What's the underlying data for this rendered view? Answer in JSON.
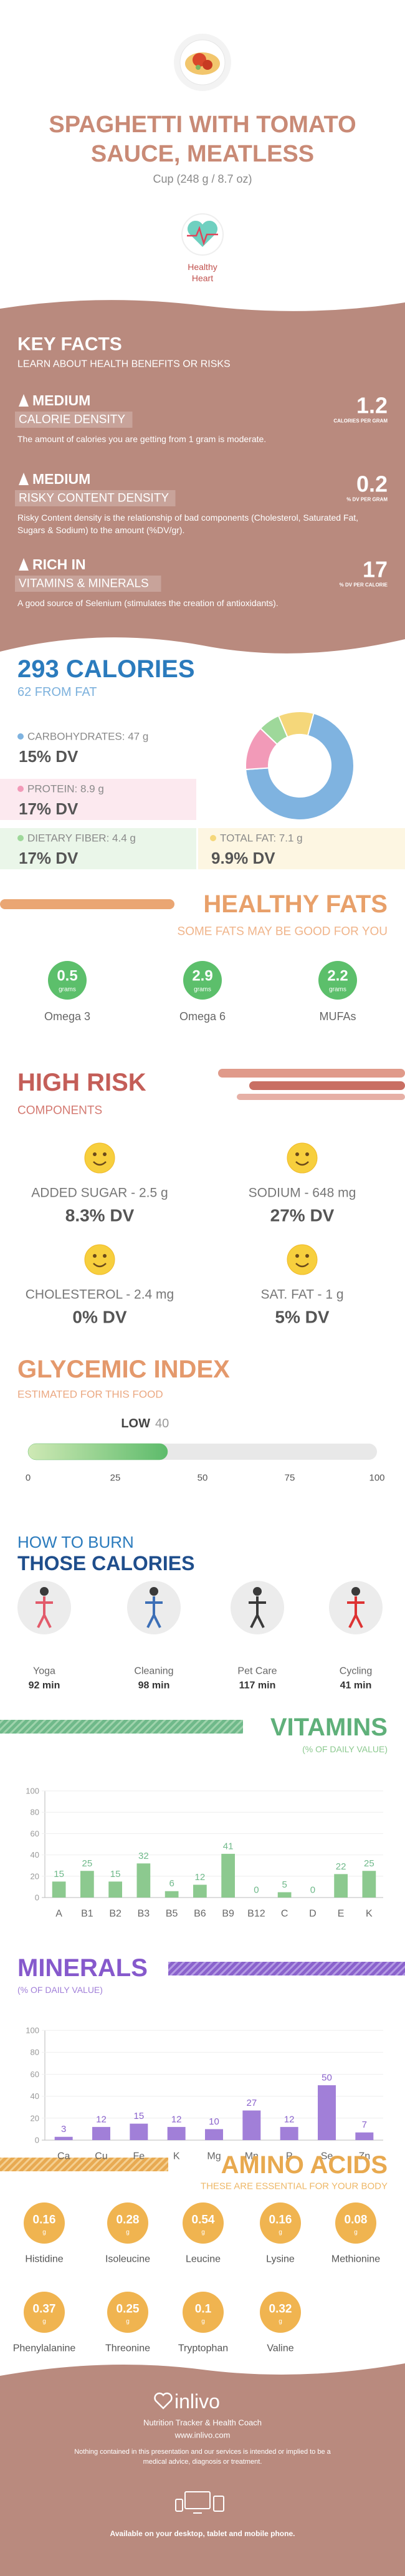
{
  "header": {
    "title_lines": [
      "SPAGHETTI WITH TOMATO",
      "SAUCE, MEATLESS"
    ],
    "serving": "Cup (248 g / 8.7 oz)",
    "badge": [
      "Healthy",
      "Heart"
    ]
  },
  "key_facts": {
    "title": "KEY FACTS",
    "subtitle": "LEARN ABOUT HEALTH BENEFITS OR RISKS",
    "facts": [
      {
        "level": "MEDIUM",
        "name": "CALORIE DENSITY",
        "value": 1.2,
        "unit": "CALORIES PER GRAM",
        "description": "The amount of calories you are getting from 1 gram is moderate."
      },
      {
        "level": "MEDIUM",
        "name": "RISKY CONTENT DENSITY",
        "value": 0.2,
        "unit": "% DV PER GRAM",
        "description": "Risky Content density is the relationship of bad components (Cholesterol, Saturated Fat, Sugars & Sodium) to the amount (%DV/gr)."
      },
      {
        "level": "RICH IN",
        "name": "VITAMINS & MINERALS",
        "value": 17,
        "unit": "% DV PER CALORIE",
        "description": "A good source of Selenium (stimulates the creation of antioxidants)."
      }
    ]
  },
  "calories": {
    "title": "293 CALORIES",
    "subtitle": "62 FROM FAT",
    "type": "pie",
    "nutrients": [
      {
        "label": "CARBOHYDRATES: 47 g",
        "value": 47,
        "dv": "15% DV",
        "color": "#7fb3e0"
      },
      {
        "label": "PROTEIN: 8.9 g",
        "value": 8.9,
        "dv": "17% DV",
        "color": "#f29ab8"
      },
      {
        "label": "DIETARY FIBER: 4.4 g",
        "value": 4.4,
        "dv": "17% DV",
        "color": "#9ed89a"
      },
      {
        "label": "TOTAL FAT: 7.1 g",
        "value": 7.1,
        "dv": "9.9% DV",
        "color": "#f5d77a"
      }
    ]
  },
  "healthy_fats": {
    "title": "HEALTHY FATS",
    "subtitle": "SOME FATS MAY BE GOOD FOR YOU",
    "unit": "grams",
    "items": [
      {
        "value": 0.5,
        "name": "Omega 3"
      },
      {
        "value": 2.9,
        "name": "Omega 6"
      },
      {
        "value": 2.2,
        "name": "MUFAs"
      }
    ]
  },
  "high_risk": {
    "title": "HIGH RISK",
    "subtitle": "COMPONENTS",
    "items": [
      {
        "label": "ADDED SUGAR - 2.5 g",
        "dv": "8.3% DV"
      },
      {
        "label": "SODIUM - 648 mg",
        "dv": "27% DV"
      },
      {
        "label": "CHOLESTEROL - 2.4 mg",
        "dv": "0% DV"
      },
      {
        "label": "SAT. FAT - 1 g",
        "dv": "5% DV"
      }
    ]
  },
  "glycemic_index": {
    "title": "GLYCEMIC INDEX",
    "subtitle": "ESTIMATED FOR THIS FOOD",
    "level": "LOW",
    "value": 40,
    "xlim": [
      0,
      100
    ],
    "xticks": [
      0,
      25,
      50,
      75,
      100
    ],
    "color": "#62bd6f"
  },
  "burn": {
    "title_lines": [
      "HOW TO BURN",
      "THOSE CALORIES"
    ],
    "activities": [
      {
        "name": "Yoga",
        "duration": "92 min"
      },
      {
        "name": "Cleaning",
        "duration": "98 min"
      },
      {
        "name": "Pet Care",
        "duration": "117 min"
      },
      {
        "name": "Cycling",
        "duration": "41 min"
      }
    ]
  },
  "vitamins": {
    "type": "bar",
    "title": "VITAMINS",
    "subtitle": "(% OF DAILY VALUE)",
    "categories": [
      "A",
      "B1",
      "B2",
      "B3",
      "B5",
      "B6",
      "B9",
      "B12",
      "C",
      "D",
      "E",
      "K"
    ],
    "values": [
      15,
      25,
      15,
      32,
      6,
      12,
      41,
      0,
      5,
      0,
      22,
      25
    ],
    "color": "#8cc98f",
    "ylim": [
      0,
      100
    ],
    "yticks": [
      0,
      20,
      40,
      60,
      80,
      100
    ]
  },
  "minerals": {
    "type": "bar",
    "title": "MINERALS",
    "subtitle": "(% OF DAILY VALUE)",
    "categories": [
      "Ca",
      "Cu",
      "Fe",
      "K",
      "Mg",
      "Mn",
      "P",
      "Se",
      "Zn"
    ],
    "values": [
      3,
      12,
      15,
      12,
      10,
      27,
      12,
      50,
      7
    ],
    "color": "#a17fd8",
    "ylim": [
      0,
      100
    ],
    "yticks": [
      0,
      20,
      40,
      60,
      80,
      100
    ]
  },
  "amino_acids": {
    "title": "AMINO ACIDS",
    "subtitle": "THESE ARE ESSENTIAL FOR YOUR BODY",
    "unit": "g",
    "items": [
      {
        "name": "Histidine",
        "value": 0.16
      },
      {
        "name": "Isoleucine",
        "value": 0.28
      },
      {
        "name": "Leucine",
        "value": 0.54
      },
      {
        "name": "Lysine",
        "value": 0.16
      },
      {
        "name": "Methionine",
        "value": 0.08
      },
      {
        "name": "Phenylalanine",
        "value": 0.37
      },
      {
        "name": "Threonine",
        "value": 0.25
      },
      {
        "name": "Tryptophan",
        "value": 0.1
      },
      {
        "name": "Valine",
        "value": 0.32
      }
    ]
  },
  "footer": {
    "brand": "inlivo",
    "tagline": "Nutrition Tracker & Health Coach",
    "url": "www.inlivo.com",
    "disclaimer": "Nothing contained in this presentation and our services is intended or implied to be a medical advice, diagnosis or treatment.",
    "availability": "Available on your desktop, tablet and mobile phone."
  }
}
